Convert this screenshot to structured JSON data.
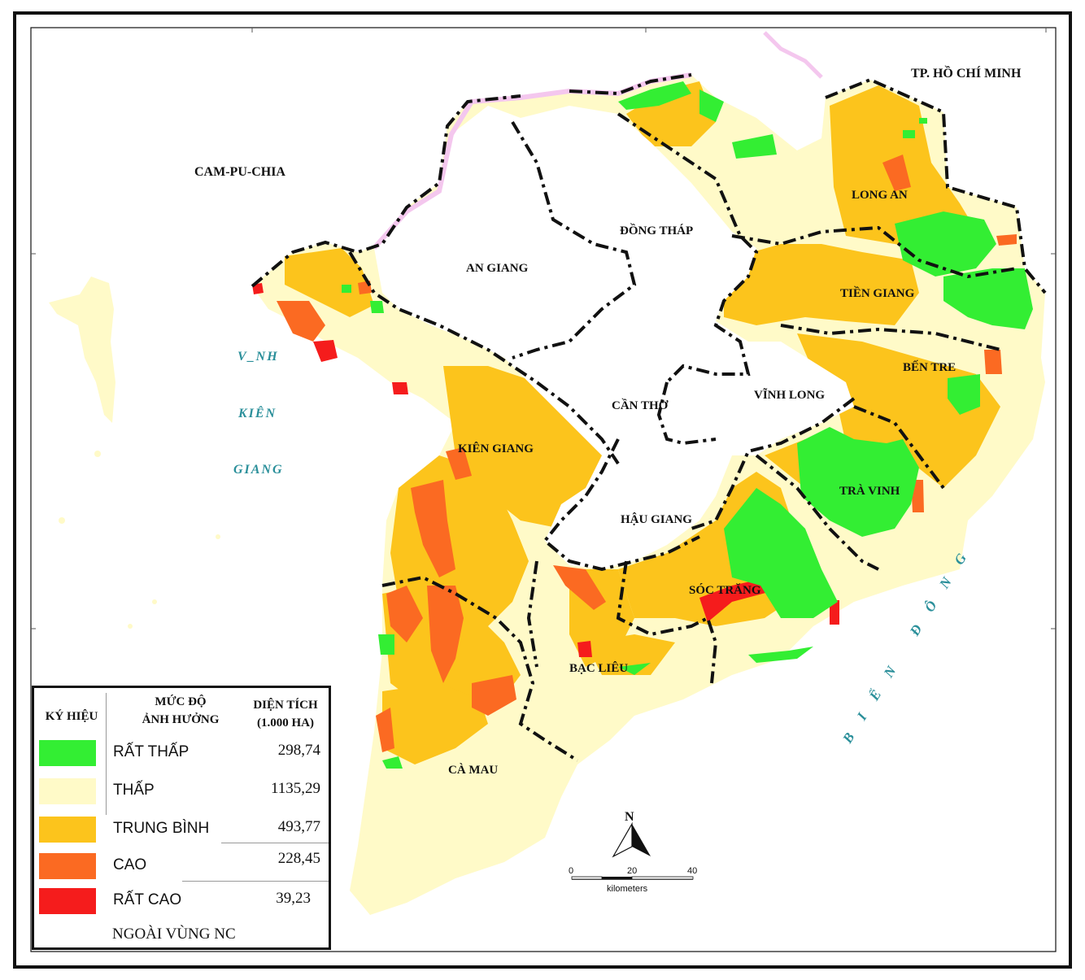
{
  "map": {
    "neighbors": {
      "cambodia": "CAM-PU-CHIA",
      "hcmc": "TP. HỒ CHÍ MINH"
    },
    "seas": {
      "gulf_line1": "V_NH",
      "gulf_line2": "KIÊN",
      "gulf_line3": "GIANG",
      "east_sea": "BIỂN ĐÔNG"
    },
    "provinces": {
      "an_giang": "AN GIANG",
      "dong_thap": "ĐỒNG THÁP",
      "long_an": "LONG AN",
      "tien_giang": "TIỀN GIANG",
      "ben_tre": "BẾN TRE",
      "vinh_long": "VĨNH LONG",
      "can_tho": "CẦN THƠ",
      "tra_vinh": "TRÀ VINH",
      "hau_giang": "HẬU GIANG",
      "kien_giang": "KIÊN GIANG",
      "soc_trang": "SÓC TRĂNG",
      "bac_lieu": "BẠC LIÊU",
      "ca_mau": "CÀ MAU"
    }
  },
  "legend": {
    "col_symbol": "KÝ HIỆU",
    "col_level_line1": "MỨC ĐỘ",
    "col_level_line2": "ẢNH HƯỞNG",
    "col_area_line1": "DIỆN TÍCH",
    "col_area_line2": "(1.000 HA)",
    "items": [
      {
        "label": "RẤT THẤP",
        "value": "298,74",
        "color": "#33ee33"
      },
      {
        "label": "THẤP",
        "value": "1135,29",
        "color": "#fffac8"
      },
      {
        "label": "TRUNG BÌNH",
        "value": "493,77",
        "color": "#fcc41c"
      },
      {
        "label": "CAO",
        "value": "228,45",
        "color": "#fb6a22"
      },
      {
        "label": "RẤT CAO",
        "value": "39,23",
        "color": "#f51c1c"
      }
    ],
    "outside": "NGOÀI VÙNG NC"
  },
  "north_arrow": {
    "label": "N"
  },
  "scale_bar": {
    "ticks": [
      "0",
      "20",
      "40"
    ],
    "unit": "kilometers"
  },
  "colors": {
    "very_low": "#33ee33",
    "low": "#fffac8",
    "medium": "#fcc41c",
    "high": "#fb6a22",
    "very_high": "#f51c1c",
    "sea_label": "#2a8f9a",
    "frame": "#111111"
  }
}
